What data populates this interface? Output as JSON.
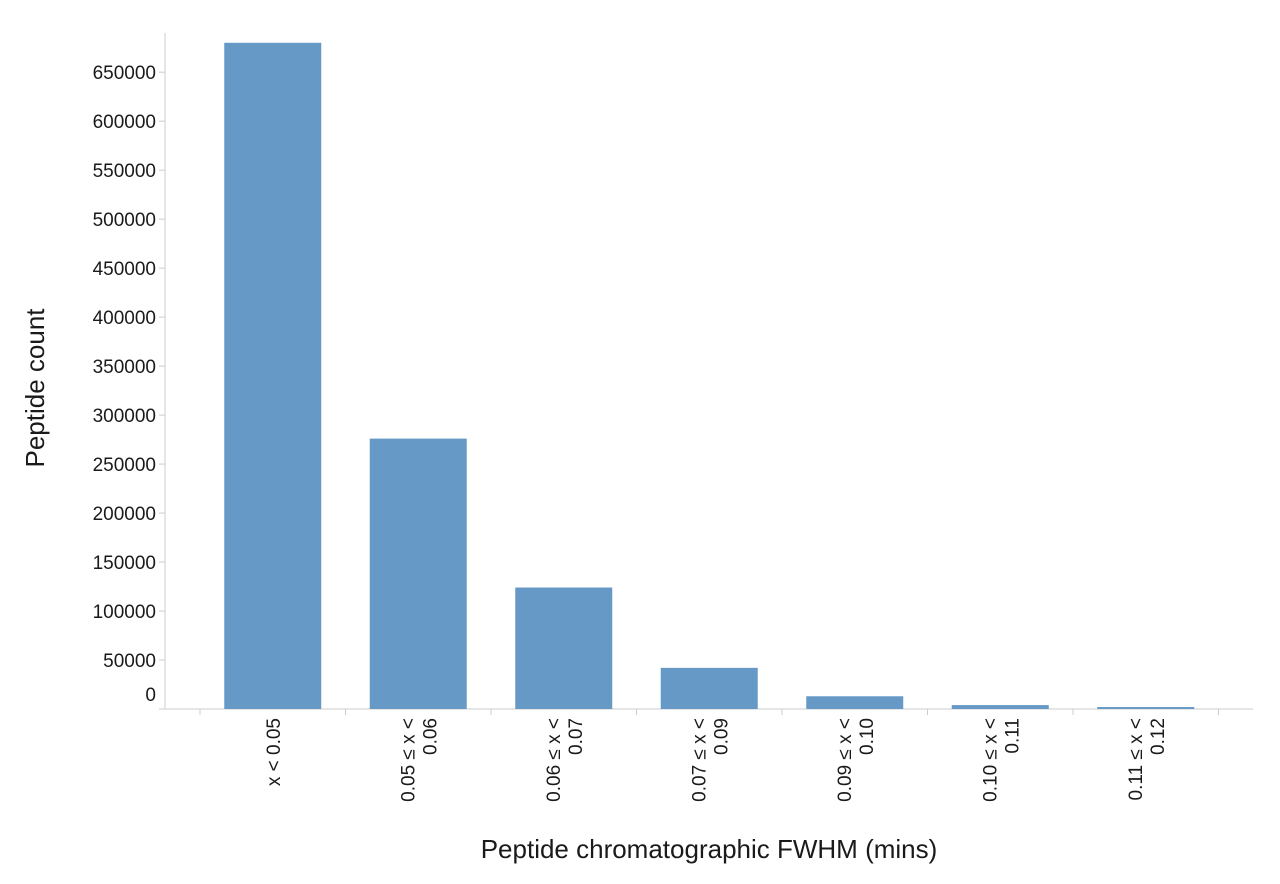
{
  "chart_data": {
    "type": "bar",
    "xlabel": "Peptide chromatographic FWHM (mins)",
    "ylabel": "Peptide count",
    "ylim": [
      0,
      690000
    ],
    "yticks": [
      0,
      50000,
      100000,
      150000,
      200000,
      250000,
      300000,
      350000,
      400000,
      450000,
      500000,
      550000,
      600000,
      650000
    ],
    "ytick_labels": [
      "0",
      "50000",
      "100000",
      "150000",
      "200000",
      "250000",
      "300000",
      "350000",
      "400000",
      "450000",
      "500000",
      "550000",
      "600000",
      "650000"
    ],
    "categories": [
      [
        "x < 0.05"
      ],
      [
        "0.05 ≤ x <",
        "0.06"
      ],
      [
        "0.06 ≤ x <",
        "0.07"
      ],
      [
        "0.07 ≤ x <",
        "0.09"
      ],
      [
        "0.09 ≤ x <",
        "0.10"
      ],
      [
        "0.10 ≤ x <",
        "0.11"
      ],
      [
        "0.11 ≤ x <",
        "0.12"
      ]
    ],
    "values": [
      680000,
      276000,
      124000,
      42000,
      13000,
      4000,
      2000
    ],
    "grid": false,
    "colors": {
      "bar": "#6699c6",
      "axis": "#cccccc",
      "text": "#1a1a1a"
    }
  }
}
